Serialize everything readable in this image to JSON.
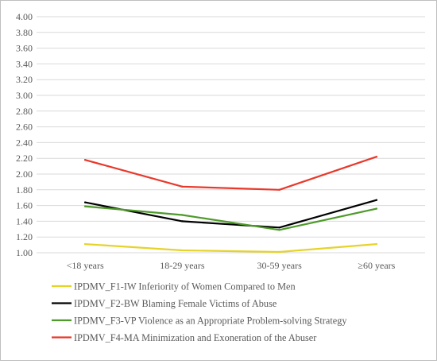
{
  "chart_data": {
    "type": "line",
    "categories": [
      "<18 years",
      "18-29 years",
      "30-59 years",
      "≥60 years"
    ],
    "yticks": [
      "1.00",
      "1.20",
      "1.40",
      "1.60",
      "1.80",
      "2.00",
      "2.20",
      "2.40",
      "2.60",
      "2.80",
      "3.00",
      "3.20",
      "3.40",
      "3.60",
      "3.80",
      "4.00"
    ],
    "ylim": [
      1.0,
      4.0
    ],
    "grid": true,
    "legend_position": "bottom",
    "series": [
      {
        "name": "IPDMV_F1-IW Inferiority of Women Compared to Men",
        "color": "#e6d32a",
        "values": [
          1.11,
          1.03,
          1.01,
          1.11
        ]
      },
      {
        "name": "IPDMV_F2-BW Blaming Female Victims of Abuse",
        "color": "#000000",
        "values": [
          1.64,
          1.4,
          1.32,
          1.67
        ]
      },
      {
        "name": "IPDMV_F3-VP Violence as an Appropriate Problem-solving Strategy",
        "color": "#4e9a2a",
        "values": [
          1.59,
          1.48,
          1.29,
          1.56
        ]
      },
      {
        "name": "IPDMV_F4-MA Minimization and Exoneration of the Abuser",
        "color": "#e8392b",
        "values": [
          2.18,
          1.84,
          1.8,
          2.22
        ]
      }
    ]
  }
}
